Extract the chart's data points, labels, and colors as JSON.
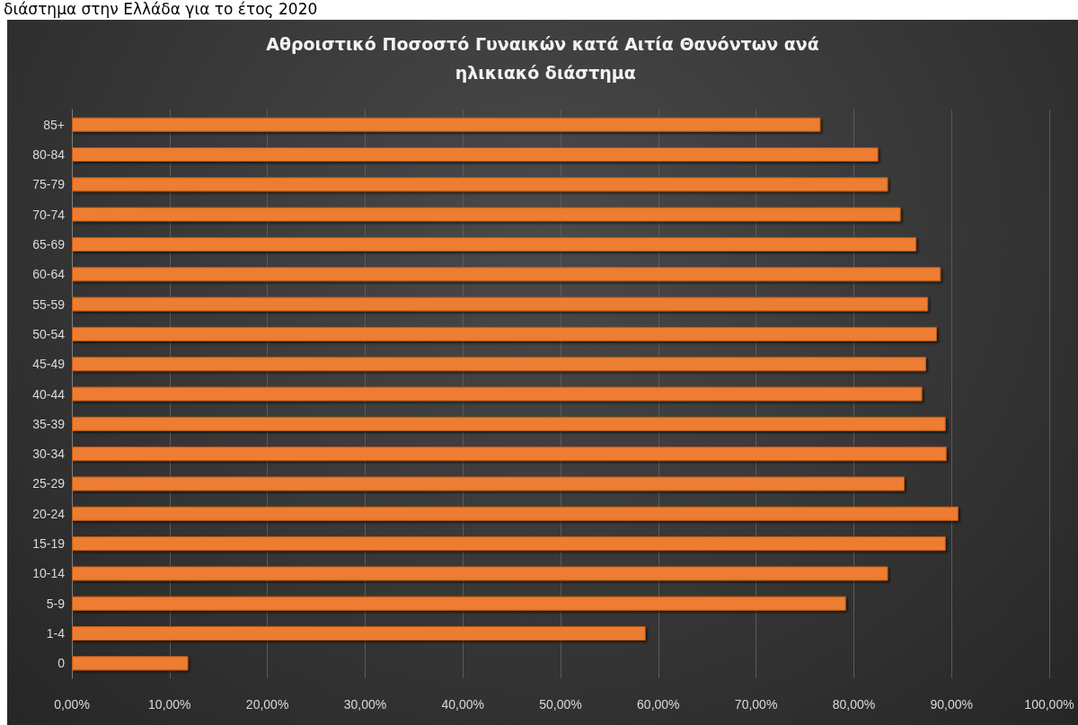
{
  "chart_data": {
    "type": "bar",
    "orientation": "horizontal",
    "title": "Αθροιστικό Ποσοστό Γυναικών κατά Αιτία Θανόντων ανά ηλικιακό διάστημα",
    "annotations": [
      "διάστημα στην Ελλάδα για το έτος 2020"
    ],
    "categories": [
      "85+",
      "80-84",
      "75-79",
      "70-74",
      "65-69",
      "60-64",
      "55-59",
      "50-54",
      "45-49",
      "40-44",
      "35-39",
      "30-34",
      "25-29",
      "20-24",
      "15-19",
      "10-14",
      "5-9",
      "1-4",
      "0"
    ],
    "values": [
      76.6,
      82.5,
      83.5,
      84.8,
      86.4,
      88.9,
      87.6,
      88.5,
      87.4,
      87.0,
      89.4,
      89.5,
      85.2,
      90.7,
      89.4,
      83.5,
      79.2,
      58.7,
      11.9
    ],
    "color": "#ed7d31",
    "xlim": [
      0,
      100
    ],
    "xticks": [
      {
        "value": 0,
        "label": "0,00%"
      },
      {
        "value": 10,
        "label": "10,00%"
      },
      {
        "value": 20,
        "label": "20,00%"
      },
      {
        "value": 30,
        "label": "30,00%"
      },
      {
        "value": 40,
        "label": "40,00%"
      },
      {
        "value": 50,
        "label": "50,00%"
      },
      {
        "value": 60,
        "label": "60,00%"
      },
      {
        "value": 70,
        "label": "70,00%"
      },
      {
        "value": 80,
        "label": "80,00%"
      },
      {
        "value": 90,
        "label": "90,00%"
      },
      {
        "value": 100,
        "label": "100,00%"
      }
    ],
    "grid": "x"
  }
}
